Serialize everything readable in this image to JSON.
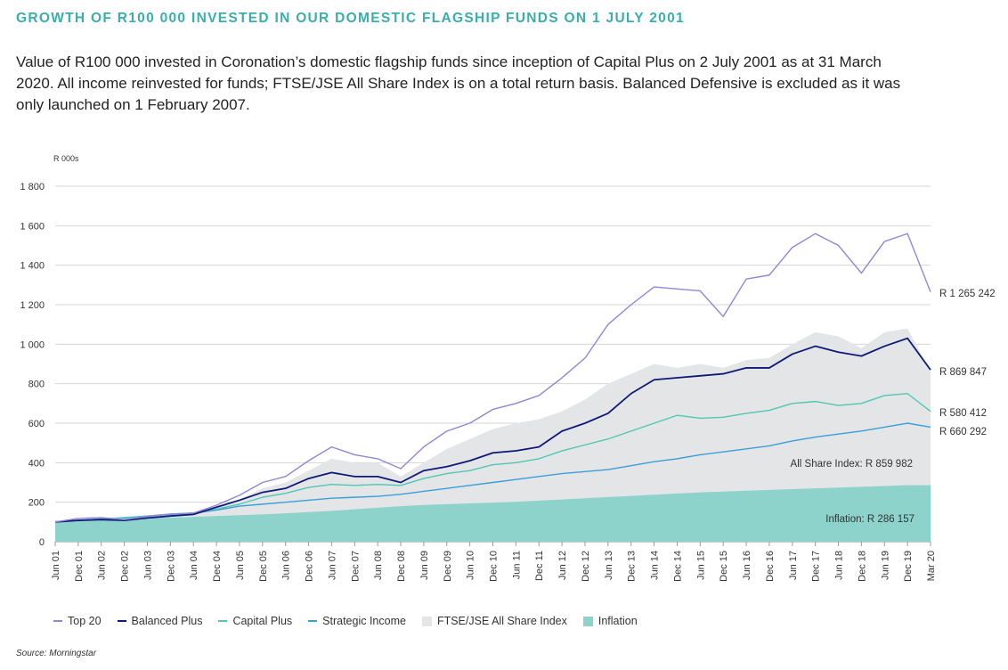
{
  "title": "GROWTH OF R100 000 INVESTED IN OUR DOMESTIC FLAGSHIP FUNDS ON 1 JULY 2001",
  "subtitle": "Value of R100 000 invested in Coronation’s domestic flagship funds since inception of Capital Plus on 2 July 2001 as at 31 March 2020. All income reinvested for funds; FTSE/JSE All Share Index is on a total return basis. Balanced Defensive is excluded as it was only launched on 1 February 2007.",
  "source": "Source: Morningstar",
  "chart_data": {
    "type": "line",
    "ylabel": "R 000s",
    "ylim": [
      0,
      1800
    ],
    "yticks": [
      "0",
      "200",
      "400",
      "600",
      "800",
      "1 000",
      "1 200",
      "1 400",
      "1 600",
      "1 800"
    ],
    "x_tick_labels": [
      "Jun 01",
      "Dec 01",
      "Jun 02",
      "Dec 02",
      "Jun 03",
      "Dec 03",
      "Jun 04",
      "Dec 04",
      "Jun 05",
      "Dec 05",
      "Jun 06",
      "Dec 06",
      "Jun 07",
      "Dec 07",
      "Jun 08",
      "Dec 08",
      "Jun 09",
      "Dec 09",
      "Jun 10",
      "Dec 10",
      "Jun 11",
      "Dec 11",
      "Jun 12",
      "Dec 12",
      "Jun 13",
      "Dec 13",
      "Jun 14",
      "Dec 14",
      "Jun 15",
      "Dec 15",
      "Jun 16",
      "Dec 16",
      "Jun 17",
      "Dec 17",
      "Jun 18",
      "Dec 18",
      "Jun 19",
      "Dec 19",
      "Mar 20"
    ],
    "x": [
      "2001-06",
      "2001-12",
      "2002-06",
      "2002-12",
      "2003-06",
      "2003-12",
      "2004-06",
      "2004-12",
      "2005-06",
      "2005-12",
      "2006-06",
      "2006-12",
      "2007-06",
      "2007-12",
      "2008-06",
      "2008-12",
      "2009-06",
      "2009-12",
      "2010-06",
      "2010-12",
      "2011-06",
      "2011-12",
      "2012-06",
      "2012-12",
      "2013-06",
      "2013-12",
      "2014-06",
      "2014-12",
      "2015-06",
      "2015-12",
      "2016-06",
      "2016-12",
      "2017-06",
      "2017-12",
      "2018-06",
      "2018-12",
      "2019-06",
      "2019-12",
      "2020-03"
    ],
    "grid": "horizontal",
    "legend_position": "bottom",
    "series": [
      {
        "name": "Top 20",
        "kind": "line",
        "color": "#8f87d6",
        "values": [
          100,
          118,
          122,
          112,
          128,
          140,
          145,
          185,
          235,
          300,
          330,
          410,
          480,
          440,
          420,
          370,
          480,
          560,
          600,
          670,
          700,
          740,
          830,
          930,
          1100,
          1200,
          1290,
          1280,
          1270,
          1140,
          1330,
          1350,
          1490,
          1560,
          1500,
          1360,
          1520,
          1560,
          1265
        ]
      },
      {
        "name": "Balanced Plus",
        "kind": "line",
        "color": "#0e1a78",
        "values": [
          100,
          108,
          112,
          108,
          120,
          130,
          138,
          175,
          210,
          250,
          270,
          320,
          350,
          330,
          330,
          300,
          360,
          380,
          410,
          450,
          460,
          480,
          560,
          600,
          650,
          750,
          820,
          830,
          840,
          850,
          880,
          880,
          950,
          990,
          960,
          940,
          990,
          1030,
          870
        ]
      },
      {
        "name": "Capital Plus",
        "kind": "line",
        "color": "#4fc7b5",
        "values": [
          100,
          108,
          116,
          120,
          130,
          140,
          146,
          165,
          190,
          225,
          245,
          275,
          290,
          285,
          290,
          285,
          320,
          345,
          360,
          390,
          400,
          420,
          460,
          490,
          520,
          560,
          600,
          640,
          625,
          630,
          650,
          665,
          700,
          710,
          690,
          700,
          740,
          750,
          660
        ]
      },
      {
        "name": "Strategic Income",
        "kind": "line",
        "color": "#3a9fd9",
        "values": [
          100,
          108,
          114,
          122,
          130,
          138,
          144,
          160,
          180,
          190,
          200,
          210,
          220,
          225,
          230,
          240,
          255,
          270,
          285,
          300,
          315,
          330,
          345,
          355,
          365,
          385,
          405,
          420,
          440,
          455,
          470,
          485,
          510,
          530,
          545,
          560,
          580,
          600,
          580
        ]
      },
      {
        "name": "FTSE/JSE All Share Index",
        "kind": "area",
        "color": "#e4e5e7",
        "values": [
          100,
          110,
          118,
          110,
          125,
          138,
          145,
          180,
          215,
          270,
          300,
          360,
          420,
          400,
          400,
          330,
          400,
          470,
          520,
          570,
          600,
          620,
          660,
          720,
          800,
          850,
          900,
          880,
          900,
          880,
          920,
          930,
          1000,
          1060,
          1040,
          980,
          1060,
          1080,
          860
        ]
      },
      {
        "name": "Inflation",
        "kind": "area",
        "color": "#8dd3cc",
        "values": [
          100,
          104,
          110,
          116,
          120,
          122,
          126,
          130,
          134,
          138,
          144,
          150,
          156,
          164,
          172,
          180,
          186,
          190,
          194,
          198,
          202,
          208,
          214,
          220,
          226,
          232,
          238,
          244,
          250,
          254,
          258,
          262,
          266,
          270,
          274,
          278,
          282,
          286,
          286
        ]
      }
    ],
    "end_labels": [
      "R 1 265 242",
      "R 869 847",
      "R 580 412",
      "R 660 292"
    ],
    "annotations": [
      "All Share Index: R 859 982",
      "Inflation: R 286 157"
    ]
  }
}
